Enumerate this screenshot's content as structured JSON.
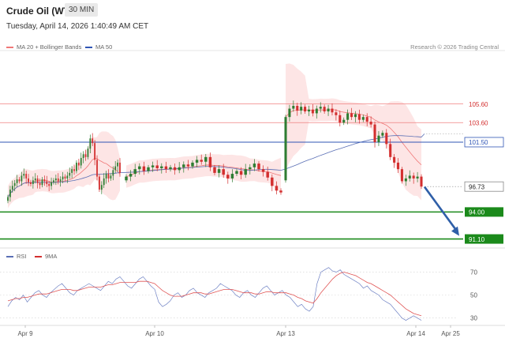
{
  "header": {
    "title": "Crude Oil (WTI)",
    "timeframe": "30 MIN",
    "datetime": "Tuesday, April 14, 2026 1:40:49 AM CET"
  },
  "legend": {
    "ma20_label": "MA 20 + Bollinger Bands",
    "ma50_label": "MA 50",
    "rsi_label": "RSI",
    "rsi_ma_label": "9MA"
  },
  "credit": "Research © 2026 Trading Central",
  "colors": {
    "bull": "#2e7d32",
    "bear": "#d32f2f",
    "band": "#fde0e0",
    "ma20": "#f07878",
    "ma50": "#5a6fb5",
    "resistance": "#f08080",
    "pivot": "#2f55b5",
    "support": "#1b8a1b",
    "arrow": "#2f5fa8"
  },
  "chart_data": [
    {
      "type": "candlestick",
      "x_ticks": [
        "Apr 9",
        "Apr 10",
        "Apr 13",
        "Apr 14",
        "Apr 25"
      ],
      "ylim": [
        90.3,
        111.0
      ],
      "levels": [
        {
          "label": "105.60",
          "value": 105.6,
          "kind": "resistance"
        },
        {
          "label": "103.60",
          "value": 103.6,
          "kind": "resistance"
        },
        {
          "label": "101.50",
          "value": 101.5,
          "kind": "pivot"
        },
        {
          "label": "96.73",
          "value": 96.73,
          "kind": "last"
        },
        {
          "label": "94.00",
          "value": 94.0,
          "kind": "support"
        },
        {
          "label": "91.10",
          "value": 91.1,
          "kind": "support"
        }
      ],
      "last_price": 96.73,
      "ma50_end": 102.4,
      "forecast_arrow": {
        "from": 96.7,
        "to": 91.1
      },
      "series": [
        {
          "segment": "Apr 9 - Apr 10",
          "closes": [
            95.6,
            96.4,
            96.8,
            97.1,
            97.5,
            97.3,
            97.9,
            98.1,
            97.6,
            97.2,
            97.0,
            97.4,
            97.6,
            97.1,
            96.9,
            97.5,
            97.3,
            97.0,
            96.8,
            97.2,
            97.4,
            97.6,
            97.3,
            97.5,
            97.8,
            97.6,
            97.9,
            98.2,
            98.6,
            98.4,
            99.3,
            99.0,
            99.8,
            100.2,
            99.9,
            100.8,
            101.9,
            101.4,
            99.6,
            97.8,
            96.4,
            96.9,
            97.6,
            98.1,
            97.6,
            97.9,
            98.5,
            98.9,
            99.3,
            98.2
          ]
        },
        {
          "segment": "Apr 10 - Apr 13",
          "closes": [
            97.8,
            98.1,
            98.6,
            98.9,
            98.4,
            98.8,
            99.0,
            98.7,
            98.9,
            98.6,
            98.8,
            98.5,
            98.8,
            99.1,
            98.9,
            99.3,
            99.6,
            99.4,
            99.9,
            98.8,
            98.2,
            98.6,
            98.0,
            97.6,
            98.1,
            98.4,
            98.0,
            98.6,
            98.8,
            99.2,
            98.6,
            98.3,
            97.7,
            96.8,
            96.3,
            96.1
          ]
        },
        {
          "segment": "Apr 13 - Apr 14",
          "closes": [
            104.2,
            105.1,
            105.4,
            104.9,
            105.3,
            104.8,
            105.0,
            104.6,
            105.1,
            105.3,
            104.8,
            105.1,
            104.7,
            104.4,
            103.6,
            103.9,
            104.6,
            104.2,
            104.5,
            103.9,
            104.2,
            103.7,
            103.4,
            101.5,
            102.2,
            102.5,
            101.3,
            99.9,
            99.3,
            98.6,
            97.3,
            97.6,
            97.9,
            97.6,
            97.8,
            96.73
          ]
        }
      ]
    },
    {
      "type": "line",
      "name": "RSI",
      "ylim": [
        25,
        80
      ],
      "y_ticks": [
        "70",
        "50",
        "30"
      ],
      "rsi": [
        40,
        45,
        48,
        46,
        50,
        44,
        48,
        52,
        54,
        50,
        48,
        52,
        55,
        58,
        60,
        56,
        52,
        50,
        54,
        56,
        58,
        60,
        58,
        56,
        54,
        58,
        62,
        60,
        64,
        66,
        62,
        58,
        56,
        60,
        64,
        66,
        62,
        58,
        55,
        44,
        40,
        42,
        45,
        50,
        52,
        48,
        50,
        54,
        56,
        52,
        50,
        48,
        52,
        54,
        56,
        60,
        58,
        56,
        54,
        50,
        48,
        52,
        54,
        50,
        48,
        52,
        56,
        58,
        54,
        50,
        52,
        54,
        50,
        48,
        44,
        40,
        42,
        38,
        36,
        40,
        60,
        70,
        72,
        74,
        71,
        70,
        72,
        68,
        66,
        64,
        62,
        60,
        56,
        58,
        54,
        52,
        50,
        46,
        44,
        42,
        38,
        34,
        30,
        28,
        30,
        32,
        30,
        28
      ],
      "rsi_ma": [
        45,
        46,
        47,
        47,
        48,
        48,
        49,
        50,
        51,
        51,
        51,
        52,
        53,
        54,
        55,
        55,
        55,
        54,
        54,
        55,
        56,
        57,
        57,
        57,
        57,
        58,
        59,
        59,
        60,
        61,
        61,
        61,
        61,
        61,
        62,
        62,
        62,
        61,
        60,
        57,
        54,
        52,
        50,
        49,
        49,
        49,
        50,
        51,
        52,
        52,
        52,
        51,
        51,
        52,
        53,
        54,
        55,
        55,
        55,
        54,
        53,
        52,
        52,
        52,
        51,
        51,
        52,
        53,
        53,
        52,
        52,
        52,
        52,
        51,
        50,
        48,
        47,
        45,
        44,
        43,
        47,
        52,
        56,
        60,
        64,
        67,
        69,
        70,
        69,
        68,
        67,
        65,
        63,
        61,
        60,
        58,
        56,
        54,
        52,
        50,
        47,
        44,
        41,
        38,
        36,
        34,
        33,
        32
      ]
    }
  ]
}
